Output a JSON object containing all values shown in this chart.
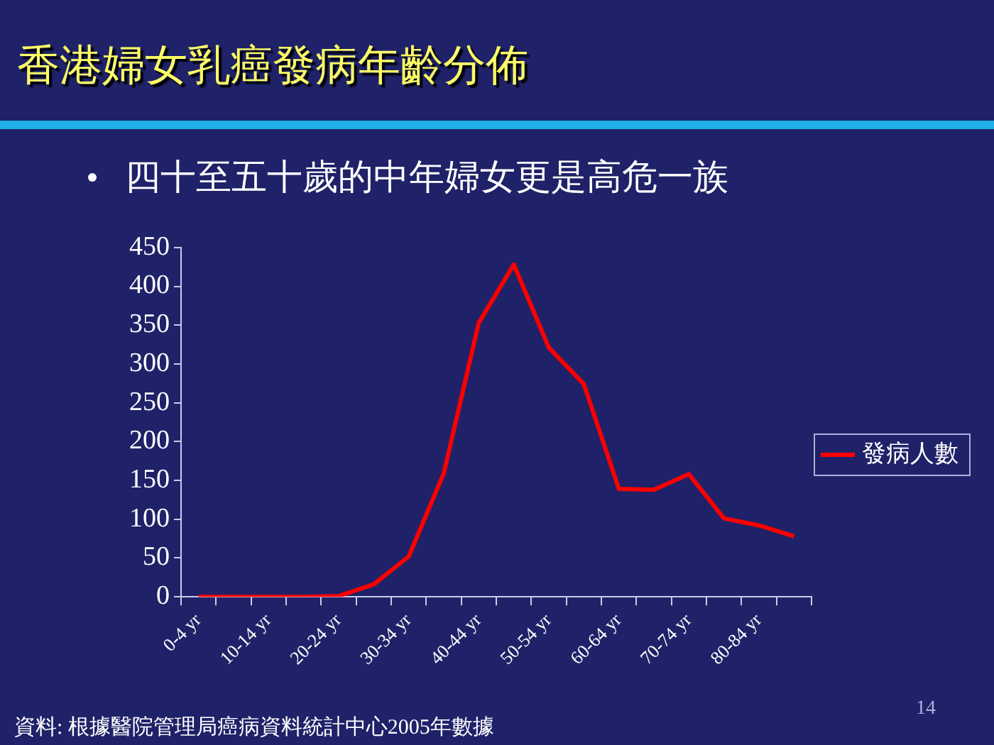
{
  "chart_data": {
    "type": "line",
    "title": "香港婦女乳癌發病年齡分佈",
    "subtitle": "四十至五十歲的中年婦女更是高危一族",
    "categories": [
      "0-4 yr",
      null,
      "10-14 yr",
      null,
      "20-24 yr",
      null,
      "30-34 yr",
      null,
      "40-44 yr",
      null,
      "50-54 yr",
      null,
      "60-64 yr",
      null,
      "70-74 yr",
      null,
      "80-84 yr",
      null
    ],
    "series": [
      {
        "name": "發病人數",
        "color": "#ff0000",
        "values": [
          0,
          0,
          0,
          0,
          1,
          16,
          52,
          159,
          353,
          428,
          321,
          274,
          139,
          138,
          158,
          101,
          92,
          78
        ]
      }
    ],
    "ylim": [
      0,
      450
    ],
    "yticks": [
      0,
      50,
      100,
      150,
      200,
      250,
      300,
      350,
      400,
      450
    ],
    "grid": false,
    "legend": "right",
    "marker": "none",
    "line_style": "solid",
    "annotations": [
      "資料: 根據醫院管理局癌病資料統計中心2005年數據",
      "14"
    ]
  }
}
